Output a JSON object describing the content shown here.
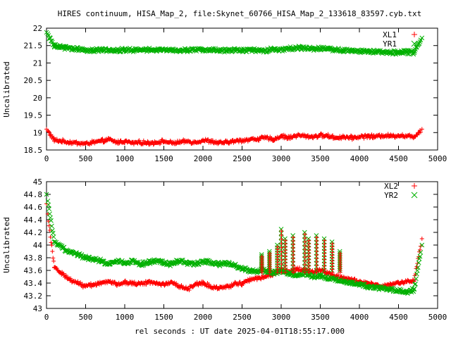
{
  "title": "HIRES continuum, HISA_Map_2, file:Skynet_60766_HISA_Map_2_133618_83597.cyb.txt",
  "xlabel": "rel seconds : UT date 2025-04-01T18:55:17.000",
  "colors": {
    "red": "#ff0000",
    "green": "#00b000"
  },
  "chart_data": [
    {
      "type": "scatter",
      "ylabel": "Uncalibrated",
      "xlim": [
        0,
        5000
      ],
      "ylim": [
        18.5,
        22
      ],
      "xticks": [
        "0",
        "500",
        "1000",
        "1500",
        "2000",
        "2500",
        "3000",
        "3500",
        "4000",
        "4500",
        "5000"
      ],
      "yticks": [
        "18.5",
        "19",
        "19.5",
        "20",
        "20.5",
        "21",
        "21.5",
        "22"
      ],
      "legend": "top-right",
      "series": [
        {
          "name": "XL1",
          "marker": "plus",
          "color": "#ff0000",
          "x": [
            0,
            100,
            200,
            300,
            400,
            500,
            600,
            700,
            800,
            900,
            1000,
            1100,
            1200,
            1300,
            1400,
            1500,
            1600,
            1700,
            1800,
            1900,
            2000,
            2100,
            2200,
            2300,
            2400,
            2500,
            2600,
            2700,
            2800,
            2900,
            3000,
            3100,
            3200,
            3300,
            3400,
            3500,
            3600,
            3700,
            3800,
            3900,
            4000,
            4100,
            4200,
            4300,
            4400,
            4500,
            4600,
            4700,
            4800
          ],
          "y": [
            19.1,
            18.78,
            18.75,
            18.72,
            18.7,
            18.68,
            18.72,
            18.75,
            18.8,
            18.72,
            18.75,
            18.7,
            18.72,
            18.7,
            18.72,
            18.75,
            18.7,
            18.72,
            18.75,
            18.72,
            18.78,
            18.75,
            18.7,
            18.72,
            18.75,
            18.78,
            18.8,
            18.82,
            18.85,
            18.8,
            18.9,
            18.85,
            18.92,
            18.9,
            18.88,
            18.92,
            18.9,
            18.85,
            18.88,
            18.85,
            18.88,
            18.9,
            18.88,
            18.92,
            18.9,
            18.92,
            18.9,
            18.88,
            19.1
          ]
        },
        {
          "name": "YR1",
          "marker": "cross",
          "color": "#00b000",
          "x": [
            0,
            100,
            200,
            300,
            400,
            500,
            600,
            700,
            800,
            900,
            1000,
            1100,
            1200,
            1300,
            1400,
            1500,
            1600,
            1700,
            1800,
            1900,
            2000,
            2100,
            2200,
            2300,
            2400,
            2500,
            2600,
            2700,
            2800,
            2900,
            3000,
            3100,
            3200,
            3300,
            3400,
            3500,
            3600,
            3700,
            3800,
            3900,
            4000,
            4100,
            4200,
            4300,
            4400,
            4500,
            4600,
            4700,
            4800
          ],
          "y": [
            21.88,
            21.48,
            21.45,
            21.42,
            21.4,
            21.38,
            21.35,
            21.38,
            21.38,
            21.36,
            21.38,
            21.37,
            21.38,
            21.37,
            21.38,
            21.37,
            21.38,
            21.36,
            21.37,
            21.38,
            21.37,
            21.38,
            21.36,
            21.37,
            21.38,
            21.36,
            21.38,
            21.37,
            21.36,
            21.4,
            21.38,
            21.42,
            21.44,
            21.43,
            21.4,
            21.42,
            21.4,
            21.38,
            21.36,
            21.35,
            21.34,
            21.33,
            21.33,
            21.32,
            21.31,
            21.3,
            21.32,
            21.3,
            21.72
          ]
        }
      ]
    },
    {
      "type": "scatter",
      "ylabel": "Uncalibrated",
      "xlim": [
        0,
        5000
      ],
      "ylim": [
        43,
        45
      ],
      "xticks": [
        "0",
        "500",
        "1000",
        "1500",
        "2000",
        "2500",
        "3000",
        "3500",
        "4000",
        "4500",
        "5000"
      ],
      "yticks": [
        "43",
        "43.2",
        "43.4",
        "43.6",
        "43.8",
        "44",
        "44.2",
        "44.4",
        "44.6",
        "44.8",
        "45"
      ],
      "legend": "top-right",
      "series": [
        {
          "name": "XL2",
          "marker": "plus",
          "color": "#ff0000",
          "x": [
            0,
            100,
            200,
            300,
            400,
            500,
            600,
            700,
            800,
            900,
            1000,
            1100,
            1200,
            1300,
            1400,
            1500,
            1600,
            1700,
            1800,
            1900,
            2000,
            2100,
            2200,
            2300,
            2400,
            2500,
            2600,
            2700,
            2800,
            2900,
            3000,
            3100,
            3200,
            3300,
            3400,
            3500,
            3600,
            3700,
            3800,
            3900,
            4000,
            4100,
            4200,
            4300,
            4400,
            4500,
            4600,
            4700,
            4800
          ],
          "y": [
            44.65,
            43.65,
            43.55,
            43.45,
            43.4,
            43.35,
            43.38,
            43.4,
            43.42,
            43.38,
            43.42,
            43.4,
            43.38,
            43.42,
            43.4,
            43.38,
            43.42,
            43.35,
            43.3,
            43.38,
            43.4,
            43.35,
            43.32,
            43.35,
            43.38,
            43.4,
            43.45,
            43.48,
            43.5,
            43.55,
            43.6,
            43.58,
            43.62,
            43.6,
            43.58,
            43.6,
            43.55,
            43.5,
            43.48,
            43.45,
            43.42,
            43.4,
            43.38,
            43.35,
            43.38,
            43.4,
            43.42,
            43.45,
            44.1
          ]
        },
        {
          "name": "YR2",
          "marker": "cross",
          "color": "#00b000",
          "x": [
            0,
            100,
            200,
            300,
            400,
            500,
            600,
            700,
            800,
            900,
            1000,
            1100,
            1200,
            1300,
            1400,
            1500,
            1600,
            1700,
            1800,
            1900,
            2000,
            2100,
            2200,
            2300,
            2400,
            2500,
            2600,
            2700,
            2800,
            2900,
            3000,
            3100,
            3200,
            3300,
            3400,
            3500,
            3600,
            3700,
            3800,
            3900,
            4000,
            4100,
            4200,
            4300,
            4400,
            4500,
            4600,
            4700,
            4800
          ],
          "y": [
            44.8,
            44.05,
            43.95,
            43.9,
            43.85,
            43.8,
            43.78,
            43.75,
            43.7,
            43.75,
            43.72,
            43.75,
            43.7,
            43.72,
            43.75,
            43.72,
            43.7,
            43.75,
            43.72,
            43.7,
            43.75,
            43.72,
            43.7,
            43.72,
            43.68,
            43.62,
            43.6,
            43.58,
            43.6,
            43.55,
            43.6,
            43.55,
            43.52,
            43.55,
            43.5,
            43.52,
            43.48,
            43.45,
            43.42,
            43.4,
            43.38,
            43.35,
            43.32,
            43.33,
            43.3,
            43.28,
            43.25,
            43.3,
            44.0
          ]
        }
      ],
      "spikes": {
        "x": [
          2750,
          2850,
          2950,
          3000,
          3050,
          3150,
          3300,
          3350,
          3450,
          3550,
          3650,
          3750
        ],
        "y": [
          43.85,
          43.9,
          44.0,
          44.25,
          44.1,
          44.15,
          44.2,
          44.1,
          44.15,
          44.1,
          44.05,
          43.9
        ]
      }
    }
  ]
}
